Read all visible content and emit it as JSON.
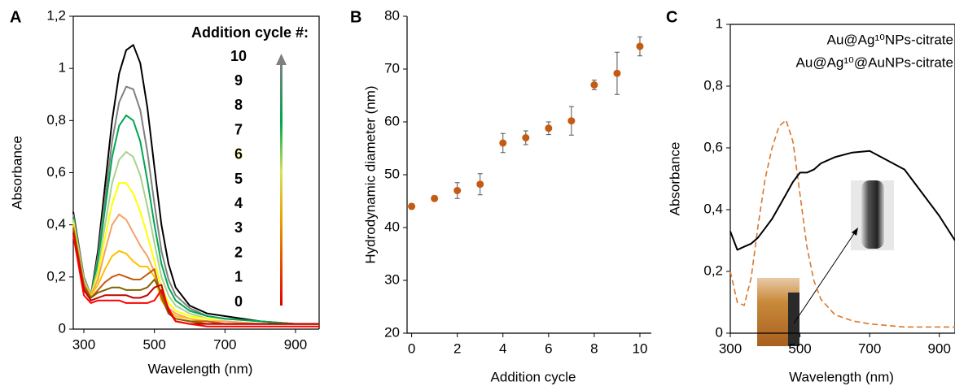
{
  "chart_data": [
    {
      "type": "line",
      "panel_label": "A",
      "x_label": "Wavelength (nm)",
      "y_label": "Absorbance",
      "legend_title": "Addition cycle #:",
      "x": [
        270,
        300,
        320,
        340,
        360,
        380,
        400,
        420,
        440,
        460,
        480,
        500,
        520,
        540,
        560,
        600,
        650,
        700,
        800,
        900,
        967
      ],
      "xlim": [
        270,
        967
      ],
      "xticks": [
        300,
        500,
        700,
        900
      ],
      "ylim": [
        0,
        1.2
      ],
      "yticks": [
        0,
        {
          "value": 0.2,
          "label": "0,2"
        },
        {
          "value": 0.4,
          "label": "0,4"
        },
        {
          "value": 0.6,
          "label": "0,6"
        },
        {
          "value": 0.8,
          "label": "0,8"
        },
        1,
        {
          "value": 1.2,
          "label": "1,2"
        }
      ],
      "series": [
        {
          "name": "10",
          "color": "#000000",
          "values": [
            0.45,
            0.2,
            0.13,
            0.3,
            0.55,
            0.8,
            0.98,
            1.07,
            1.09,
            1.02,
            0.85,
            0.62,
            0.4,
            0.25,
            0.16,
            0.09,
            0.06,
            0.05,
            0.03,
            0.02,
            0.02
          ]
        },
        {
          "name": "9",
          "color": "#808080",
          "values": [
            0.44,
            0.2,
            0.13,
            0.28,
            0.5,
            0.72,
            0.87,
            0.93,
            0.92,
            0.84,
            0.68,
            0.48,
            0.3,
            0.19,
            0.13,
            0.08,
            0.05,
            0.04,
            0.03,
            0.02,
            0.02
          ]
        },
        {
          "name": "8",
          "color": "#00a651",
          "values": [
            0.43,
            0.19,
            0.13,
            0.26,
            0.46,
            0.66,
            0.78,
            0.82,
            0.8,
            0.72,
            0.57,
            0.4,
            0.25,
            0.16,
            0.11,
            0.07,
            0.05,
            0.04,
            0.03,
            0.02,
            0.02
          ]
        },
        {
          "name": "7",
          "color": "#a9d18e",
          "values": [
            0.42,
            0.19,
            0.13,
            0.23,
            0.4,
            0.56,
            0.65,
            0.68,
            0.66,
            0.59,
            0.47,
            0.33,
            0.2,
            0.13,
            0.09,
            0.06,
            0.04,
            0.03,
            0.02,
            0.02,
            0.02
          ]
        },
        {
          "name": "6",
          "color": "#ffff00",
          "values": [
            0.41,
            0.18,
            0.13,
            0.21,
            0.35,
            0.48,
            0.56,
            0.56,
            0.52,
            0.45,
            0.36,
            0.26,
            0.16,
            0.1,
            0.07,
            0.05,
            0.04,
            0.03,
            0.02,
            0.02,
            0.02
          ]
        },
        {
          "name": "5",
          "color": "#f4a16a",
          "values": [
            0.4,
            0.18,
            0.13,
            0.19,
            0.3,
            0.4,
            0.44,
            0.42,
            0.37,
            0.32,
            0.28,
            0.22,
            0.13,
            0.08,
            0.06,
            0.04,
            0.03,
            0.03,
            0.02,
            0.02,
            0.02
          ]
        },
        {
          "name": "4",
          "color": "#ffc000",
          "values": [
            0.4,
            0.17,
            0.13,
            0.17,
            0.23,
            0.28,
            0.3,
            0.29,
            0.26,
            0.24,
            0.24,
            0.2,
            0.11,
            0.07,
            0.05,
            0.04,
            0.03,
            0.02,
            0.02,
            0.02,
            0.02
          ]
        },
        {
          "name": "3",
          "color": "#c55a11",
          "values": [
            0.39,
            0.17,
            0.12,
            0.15,
            0.18,
            0.2,
            0.21,
            0.2,
            0.19,
            0.19,
            0.21,
            0.23,
            0.12,
            0.06,
            0.04,
            0.03,
            0.03,
            0.02,
            0.02,
            0.02,
            0.02
          ]
        },
        {
          "name": "2",
          "color": "#806000",
          "values": [
            0.38,
            0.16,
            0.12,
            0.14,
            0.15,
            0.16,
            0.16,
            0.15,
            0.15,
            0.15,
            0.16,
            0.19,
            0.14,
            0.06,
            0.04,
            0.03,
            0.02,
            0.02,
            0.02,
            0.02,
            0.02
          ]
        },
        {
          "name": "1",
          "color": "#c00000",
          "values": [
            0.37,
            0.15,
            0.11,
            0.12,
            0.13,
            0.13,
            0.13,
            0.13,
            0.12,
            0.12,
            0.13,
            0.16,
            0.17,
            0.07,
            0.03,
            0.02,
            0.02,
            0.02,
            0.02,
            0.02,
            0.02
          ]
        },
        {
          "name": "0",
          "color": "#ff0000",
          "values": [
            0.36,
            0.13,
            0.1,
            0.11,
            0.11,
            0.11,
            0.11,
            0.1,
            0.1,
            0.1,
            0.1,
            0.11,
            0.15,
            0.08,
            0.03,
            0.02,
            0.01,
            0.01,
            0.01,
            0.01,
            0.01
          ]
        }
      ]
    },
    {
      "type": "scatter",
      "panel_label": "B",
      "x_label": "Addition cycle",
      "y_label": "Hydrodynamic diameter (nm)",
      "x": [
        0,
        1,
        2,
        3,
        4,
        5,
        6,
        7,
        8,
        9,
        10
      ],
      "values": [
        44,
        45.5,
        47,
        48.2,
        56,
        57,
        58.8,
        60.2,
        67,
        69.2,
        74.3
      ],
      "errors": [
        0.5,
        0.5,
        1.5,
        2,
        1.8,
        1.3,
        1.2,
        2.7,
        0.9,
        4,
        1.8
      ],
      "color": "#c55a11",
      "xlim": [
        -0.2,
        10.5
      ],
      "xticks": [
        0,
        2,
        4,
        6,
        8,
        10
      ],
      "ylim": [
        20,
        80
      ],
      "yticks": [
        20,
        30,
        40,
        50,
        60,
        70,
        80
      ]
    },
    {
      "type": "line",
      "panel_label": "C",
      "x_label": "Wavelength (nm)",
      "y_label": "Absorbance",
      "x": [
        300,
        320,
        340,
        360,
        380,
        400,
        420,
        440,
        460,
        480,
        500,
        520,
        540,
        560,
        600,
        650,
        700,
        800,
        900,
        945
      ],
      "xlim": [
        300,
        945
      ],
      "xticks": [
        300,
        500,
        700,
        900
      ],
      "ylim": [
        0,
        1
      ],
      "yticks": [
        0,
        {
          "value": 0.2,
          "label": "0,2"
        },
        {
          "value": 0.4,
          "label": "0,4"
        },
        {
          "value": 0.6,
          "label": "0,6"
        },
        {
          "value": 0.8,
          "label": "0,8"
        },
        1
      ],
      "series": [
        {
          "name": "Au@Ag¹⁰NPs-citrate",
          "color": "#d9782d",
          "line_style": "dashed",
          "values": [
            0.2,
            0.1,
            0.09,
            0.18,
            0.35,
            0.5,
            0.6,
            0.67,
            0.69,
            0.62,
            0.45,
            0.28,
            0.17,
            0.11,
            0.06,
            0.04,
            0.03,
            0.02,
            0.02,
            0.02
          ]
        },
        {
          "name": "Au@Ag¹⁰@AuNPs-citrate",
          "color": "#000000",
          "line_style": "solid",
          "values": [
            0.33,
            0.27,
            0.28,
            0.29,
            0.31,
            0.34,
            0.37,
            0.41,
            0.45,
            0.49,
            0.52,
            0.52,
            0.53,
            0.55,
            0.57,
            0.585,
            0.59,
            0.53,
            0.38,
            0.3
          ]
        }
      ]
    }
  ]
}
